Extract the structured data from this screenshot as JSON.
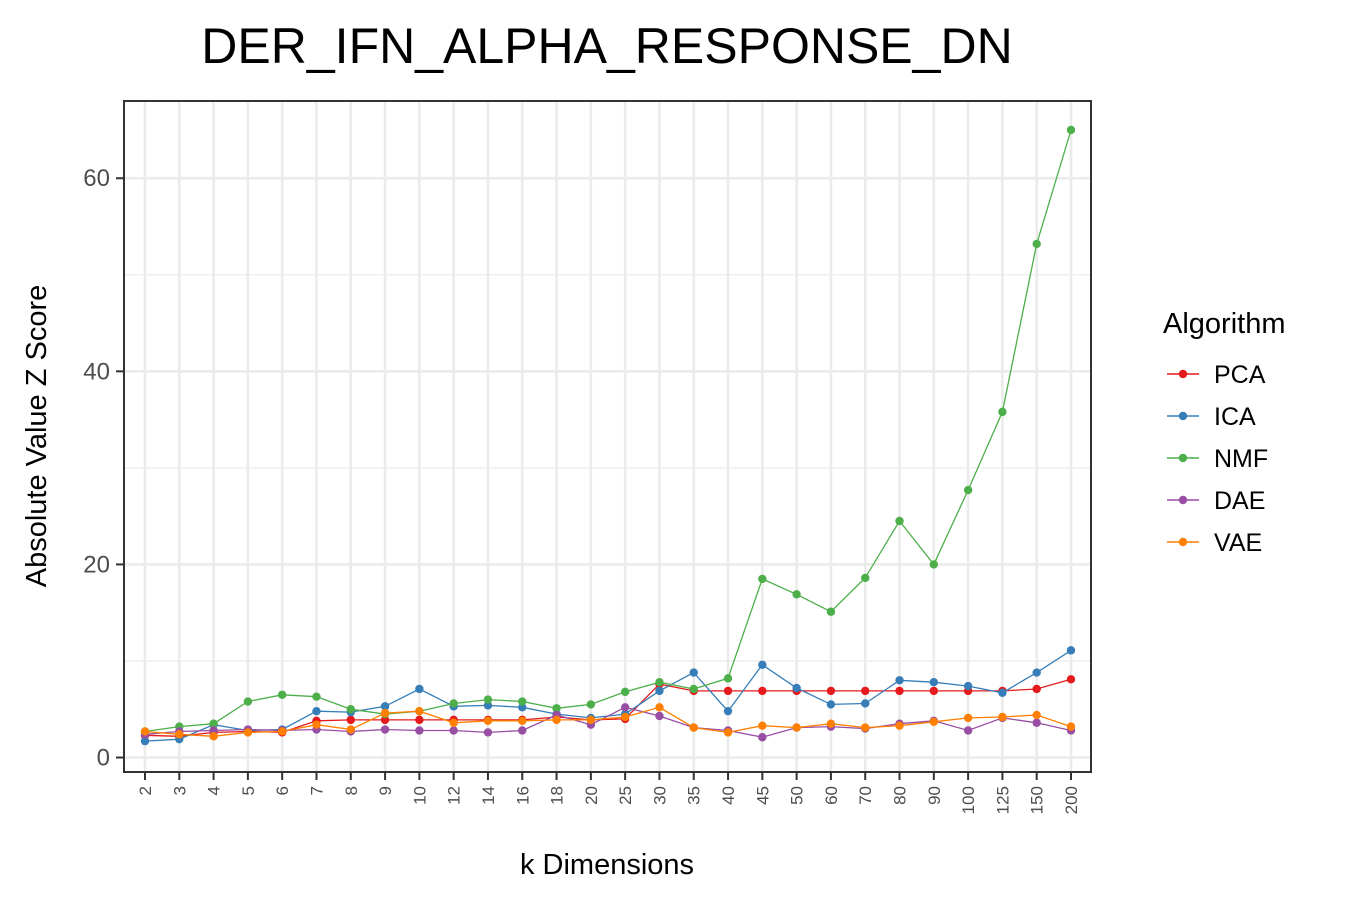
{
  "chart_data": {
    "type": "line",
    "title": "DER_IFN_ALPHA_RESPONSE_DN",
    "xlabel": "k Dimensions",
    "ylabel": "Absolute Value Z Score",
    "categories": [
      "2",
      "3",
      "4",
      "5",
      "6",
      "7",
      "8",
      "9",
      "10",
      "12",
      "14",
      "16",
      "18",
      "20",
      "25",
      "30",
      "35",
      "40",
      "45",
      "50",
      "60",
      "70",
      "80",
      "90",
      "100",
      "125",
      "150",
      "200"
    ],
    "ylim": [
      -1.5,
      68
    ],
    "yticks": [
      0,
      20,
      40,
      60
    ],
    "grid": true,
    "legend": {
      "title": "Algorithm",
      "position": "right"
    },
    "series": [
      {
        "name": "PCA",
        "color": "#E41A1C",
        "values": [
          2.3,
          2.2,
          2.6,
          2.7,
          2.6,
          3.8,
          3.9,
          3.9,
          3.9,
          3.9,
          3.9,
          3.9,
          4.2,
          3.9,
          4.0,
          7.6,
          6.9,
          6.9,
          6.9,
          6.9,
          6.9,
          6.9,
          6.9,
          6.9,
          6.9,
          6.9,
          7.1,
          8.1
        ]
      },
      {
        "name": "ICA",
        "color": "#377EB8",
        "values": [
          1.7,
          1.9,
          3.4,
          2.8,
          2.9,
          4.8,
          4.7,
          5.3,
          7.1,
          5.3,
          5.4,
          5.2,
          4.5,
          4.1,
          4.5,
          6.9,
          8.8,
          4.8,
          9.6,
          7.2,
          5.5,
          5.6,
          8.0,
          7.8,
          7.4,
          6.7,
          8.8,
          11.1
        ]
      },
      {
        "name": "NMF",
        "color": "#4DAF4A",
        "values": [
          2.7,
          3.2,
          3.5,
          5.8,
          6.5,
          6.3,
          5.0,
          4.5,
          4.8,
          5.6,
          6.0,
          5.8,
          5.1,
          5.5,
          6.8,
          7.8,
          7.1,
          8.2,
          18.5,
          16.9,
          15.1,
          18.6,
          24.5,
          20.0,
          27.7,
          35.8,
          53.2,
          65.0
        ]
      },
      {
        "name": "DAE",
        "color": "#984EA3",
        "values": [
          2.4,
          2.7,
          2.8,
          2.9,
          2.8,
          2.9,
          2.7,
          2.9,
          2.8,
          2.8,
          2.6,
          2.8,
          4.4,
          3.4,
          5.2,
          4.3,
          3.1,
          2.8,
          2.1,
          3.1,
          3.2,
          3.0,
          3.5,
          3.8,
          2.8,
          4.1,
          3.6,
          2.8
        ]
      },
      {
        "name": "VAE",
        "color": "#FF7F00",
        "values": [
          2.7,
          2.4,
          2.2,
          2.6,
          2.7,
          3.4,
          2.9,
          4.6,
          4.8,
          3.6,
          3.8,
          3.8,
          3.9,
          3.9,
          4.2,
          5.2,
          3.1,
          2.6,
          3.3,
          3.1,
          3.5,
          3.1,
          3.3,
          3.7,
          4.1,
          4.2,
          4.4,
          3.2
        ]
      }
    ]
  }
}
